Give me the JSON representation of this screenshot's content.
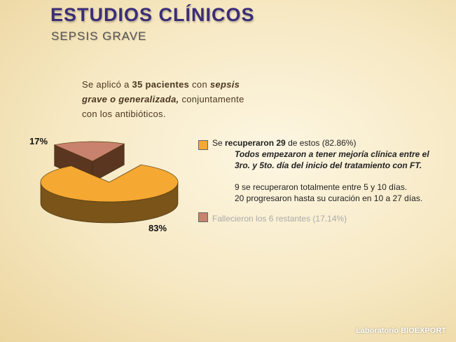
{
  "slide": {
    "title": "ESTUDIOS CLÍNICOS",
    "subtitle": "SEPSIS GRAVE",
    "intro": {
      "p1": "Se aplicó a ",
      "num": "35 pacientes",
      "p2": " con ",
      "cond": "sepsis grave o generalizada,",
      "p3": " conjuntamente con los antibióticos."
    },
    "footer": {
      "prefix": "Laboratorio ",
      "brand": "BIOEXPORT"
    }
  },
  "legend": {
    "item1": {
      "pre": "Se ",
      "bold": "recuperaron 29",
      "post": " de estos (82.86%)",
      "lines_italic": [
        "Todos empezaron a tener mejoría clínica entre el 3ro. y 5to. día del inicio del tratamiento con FT."
      ],
      "lines": [
        "9 se recuperaron totalmente entre 5 y 10 días.",
        "20 progresaron hasta su curación en 10 a 27 días."
      ]
    },
    "item2": {
      "text": "Fallecieron los 6 restantes (17.14%)"
    }
  },
  "chart_data": {
    "type": "pie",
    "categories": [
      "Se recuperaron",
      "Fallecieron"
    ],
    "values": [
      83,
      17
    ],
    "data_labels": [
      "83%",
      "17%"
    ],
    "colors": [
      "#f5a832",
      "#c8826e"
    ],
    "side_colors": [
      "#7a5418",
      "#5a3520"
    ],
    "style": "3d-exploded"
  }
}
